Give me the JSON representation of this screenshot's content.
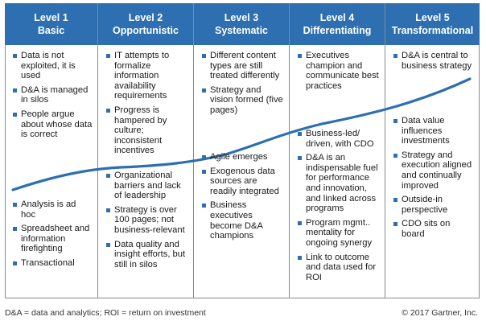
{
  "levels": [
    {
      "number": "Level 1",
      "name": "Basic",
      "top_items": [
        "Data is not exploited, it is used",
        "D&A is managed in silos",
        "People argue about whose data is correct"
      ],
      "bottom_items": [
        "Analysis is ad hoc",
        "Spreadsheet and information firefighting",
        "Transactional"
      ]
    },
    {
      "number": "Level 2",
      "name": "Opportunistic",
      "top_items": [
        "IT attempts to formalize information availability requirements",
        "Progress is hampered by culture; inconsistent incentives"
      ],
      "bottom_items": [
        "Organizational barriers and lack of leadership",
        "Strategy is over 100 pages; not business-relevant",
        "Data quality and insight efforts, but still in silos"
      ]
    },
    {
      "number": "Level 3",
      "name": "Systematic",
      "top_items": [
        "Different content types are still treated differently",
        "Strategy and vision formed (five pages)"
      ],
      "bottom_items": [
        "Agile emerges",
        "Exogenous data sources are readily integrated",
        "Business executives become D&A champions"
      ]
    },
    {
      "number": "Level 4",
      "name": "Differentiating",
      "top_items": [
        "Executives champion and communicate best practices"
      ],
      "bottom_items": [
        "Business-led/ driven, with CDO",
        "D&A is an indispensable fuel for performance and innovation, and linked across programs",
        "Program mgmt.. mentality for ongoing synergy",
        "Link to outcome and data used for ROI"
      ]
    },
    {
      "number": "Level 5",
      "name": "Transformational",
      "top_items": [
        "D&A is central to business strategy"
      ],
      "bottom_items": [
        "Data value influences investments",
        "Strategy and execution aligned and continually improved",
        "Outside-in perspective",
        "CDO sits on board"
      ]
    }
  ],
  "footnote": "D&A = data and analytics; ROI = return on investment",
  "copyright": "© 2017 Gartner, Inc.",
  "colors": {
    "header": "#2d6fb0",
    "curve": "#2d6fb0",
    "bullet": "#2d6fb0",
    "border": "#8a8a8a"
  }
}
